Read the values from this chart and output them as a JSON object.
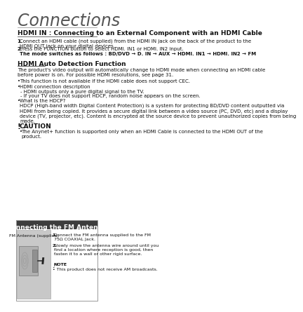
{
  "bg_color": "#ffffff",
  "page_title": "Connections",
  "section1_title": "HDMI IN : Connecting to an External Component with an HDMI Cable",
  "step1": "Connect an HDMI cable (not supplied) from the HDMI IN jack on the back of the product to the\nHDMI OUT jack on your digital devices.",
  "step2_text": "Press the FUNCTION button to select HDMI. IN1 or HDMI. IN2 input.",
  "step2_mode": "The mode switches as follows : BD/DVD → D. IN → AUX → HDMI. IN1 → HDMI. IN2 → FM",
  "section2_title": "HDMI Auto Detection Function",
  "auto_detect_body": "The product's video output will automatically change to HDMI mode when connecting an HDMI cable\nbefore power is on. For possible HDMI resolutions, see page 31.",
  "bullet1": "This function is not available if the HDMI cable does not support CEC.",
  "bullet2": "HDMI connection description",
  "sub_bullet1": "- HDMI outputs only a pure digital signal to the TV.",
  "sub_bullet2": "- If your TV does not support HDCP, random noise appears on the screen.",
  "bullet3": "What is the HDCP?",
  "hdcp_body": "HDCP (High-band width Digital Content Protection) is a system for protecting BD/DVD content outputted via\nHDMI from being copied. It provides a secure digital link between a video source (PC, DVD, etc) and a display\ndevice (TV, projector, etc). Content is encrypted at the source device to prevent unauthorized copies from being\nmade.",
  "caution_title": "CAUTION",
  "caution_body": "The Anynet+ function is supported only when an HDMI Cable is connected to the HDMI OUT of the\nproduct.",
  "box_title": "Connecting the FM Antenna",
  "fm_label": "FM Antenna (supplied)",
  "fm_step1": "Connect the FM antenna supplied to the FM\n75Ω COAXIAL Jack.",
  "fm_step2": "Slowly move the antenna wire around until you\nfind a location where reception is good, then\nfasten it to a wall or other rigid surface.",
  "note_title": "NOTE",
  "note_body": "This product does not receive AM broadcasts.",
  "box_bg": "#3d3d3d",
  "box_text_color": "#ffffff",
  "image_bg": "#c8c8c8"
}
